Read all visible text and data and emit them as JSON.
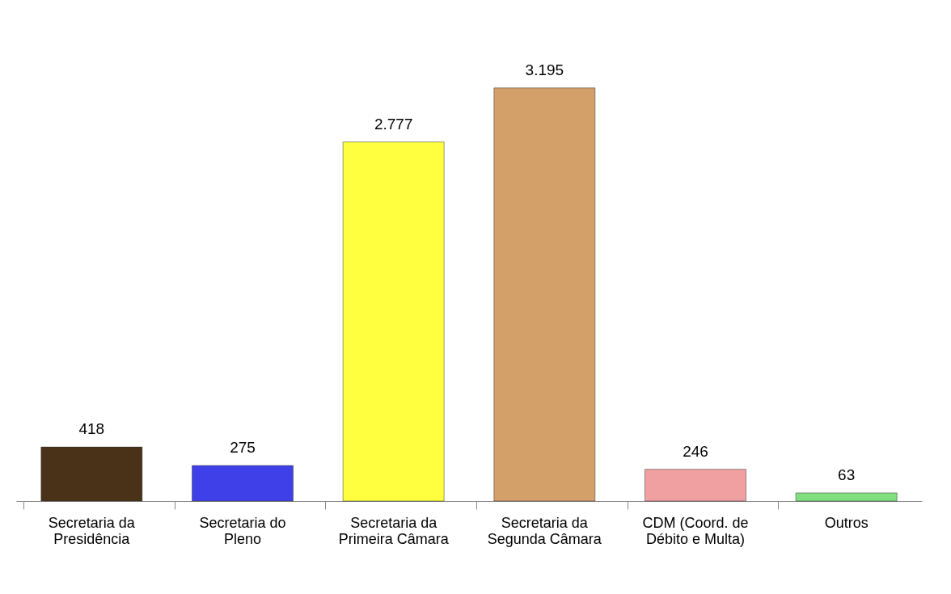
{
  "chart_data": {
    "type": "bar",
    "categories": [
      "Secretaria da\nPresidência",
      "Secretaria do\nPleno",
      "Secretaria da\nPrimeira Câmara",
      "Secretaria da\nSegunda Câmara",
      "CDM (Coord. de\nDébito e Multa)",
      "Outros"
    ],
    "values": [
      418,
      275,
      2777,
      3195,
      246,
      63
    ],
    "value_labels": [
      "418",
      "275",
      "2.777",
      "3.195",
      "246",
      "63"
    ],
    "colors": [
      "#4a3218",
      "#4040e8",
      "#ffff40",
      "#d4a06a",
      "#f0a0a0",
      "#80e080"
    ],
    "grid": false,
    "legend": false
  }
}
